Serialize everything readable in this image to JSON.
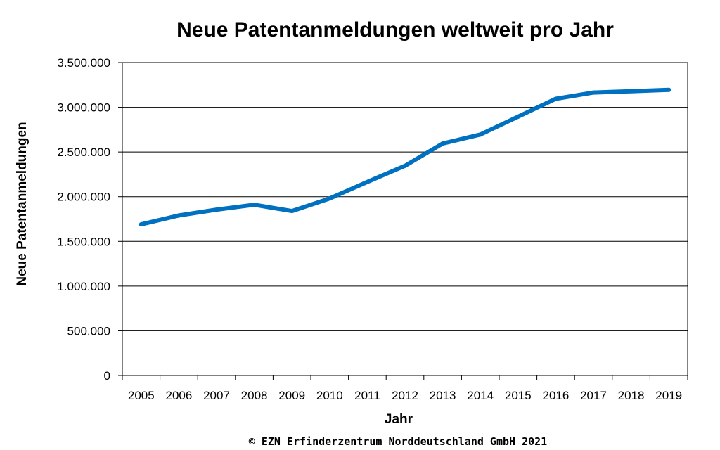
{
  "chart_data": {
    "type": "line",
    "title": "Neue Patentanmeldungen weltweit pro Jahr",
    "xlabel": "Jahr",
    "ylabel": "Neue Patentanmeldungen",
    "x": [
      "2005",
      "2006",
      "2007",
      "2008",
      "2009",
      "2010",
      "2011",
      "2012",
      "2013",
      "2014",
      "2015",
      "2016",
      "2017",
      "2018",
      "2019"
    ],
    "series": [
      {
        "values": [
          1690000,
          1790000,
          1855000,
          1910000,
          1840000,
          1980000,
          2165000,
          2345000,
          2595000,
          2695000,
          2895000,
          3095000,
          3165000,
          3180000,
          3195000
        ],
        "color": "#0070C0"
      }
    ],
    "ylim": [
      0,
      3500000
    ],
    "yticks": [
      0,
      500000,
      1000000,
      1500000,
      2000000,
      2500000,
      3000000,
      3500000
    ],
    "ytick_labels": [
      "0",
      "500.000",
      "1.000.000",
      "1.500.000",
      "2.000.000",
      "2.500.000",
      "3.000.000",
      "3.500.000"
    ],
    "grid": true,
    "legend": "none"
  },
  "footer": {
    "copyright": "© EZN Erfinderzentrum Norddeutschland GmbH 2021"
  }
}
